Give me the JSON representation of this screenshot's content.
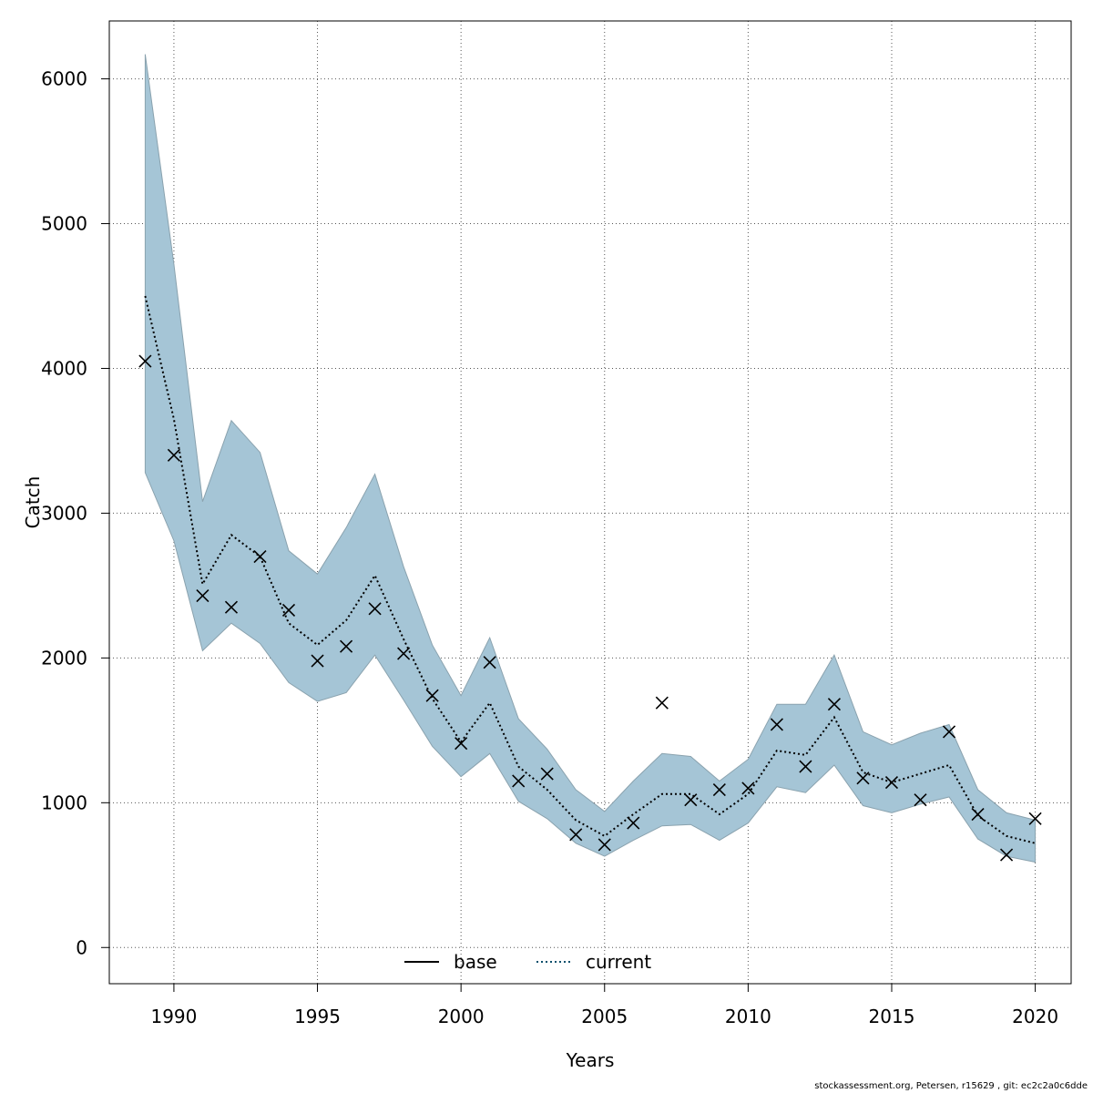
{
  "chart_data": {
    "type": "line",
    "xlabel": "Years",
    "ylabel": "Catch",
    "xlim": [
      1987.75,
      2021.25
    ],
    "ylim": [
      -250,
      6400
    ],
    "xticks": [
      1990,
      1995,
      2000,
      2005,
      2010,
      2015,
      2020
    ],
    "yticks": [
      0,
      1000,
      2000,
      3000,
      4000,
      5000,
      6000
    ],
    "grid": true,
    "legend_position": "bottom-center",
    "legend": [
      {
        "name": "base",
        "style": "solid"
      },
      {
        "name": "current",
        "style": "dotted"
      }
    ],
    "colors": {
      "band": "#a5c5d6",
      "band_edge": "#8aa2ae",
      "current_line": "#0b4f6c",
      "points": "#000000"
    },
    "x": [
      1989,
      1990,
      1991,
      1992,
      1993,
      1994,
      1995,
      1996,
      1997,
      1998,
      1999,
      2000,
      2001,
      2002,
      2003,
      2004,
      2005,
      2006,
      2007,
      2008,
      2009,
      2010,
      2011,
      2012,
      2013,
      2014,
      2015,
      2016,
      2017,
      2018,
      2019,
      2020
    ],
    "series": [
      {
        "name": "current",
        "values": [
          4500,
          3650,
          2510,
          2850,
          2700,
          2240,
          2090,
          2260,
          2570,
          2130,
          1720,
          1420,
          1690,
          1250,
          1090,
          880,
          770,
          920,
          1060,
          1060,
          920,
          1060,
          1360,
          1330,
          1590,
          1210,
          1140,
          1200,
          1260,
          910,
          770,
          720
        ]
      },
      {
        "name": "upper",
        "values": [
          6170,
          4720,
          3080,
          3640,
          3420,
          2740,
          2580,
          2900,
          3270,
          2630,
          2090,
          1740,
          2140,
          1580,
          1370,
          1090,
          940,
          1150,
          1340,
          1320,
          1150,
          1300,
          1680,
          1680,
          2020,
          1490,
          1400,
          1480,
          1540,
          1090,
          930,
          880
        ]
      },
      {
        "name": "lower",
        "values": [
          3280,
          2810,
          2050,
          2240,
          2100,
          1830,
          1700,
          1760,
          2020,
          1710,
          1390,
          1180,
          1340,
          1010,
          890,
          720,
          630,
          740,
          840,
          850,
          740,
          860,
          1110,
          1070,
          1260,
          980,
          930,
          990,
          1040,
          750,
          630,
          590
        ]
      },
      {
        "name": "observed",
        "values": [
          4050,
          3400,
          2430,
          2350,
          2700,
          2330,
          1980,
          2080,
          2340,
          2030,
          1740,
          1410,
          1970,
          1150,
          1200,
          780,
          710,
          860,
          1690,
          1020,
          1090,
          1100,
          1540,
          1250,
          1680,
          1170,
          1140,
          1020,
          1490,
          920,
          640,
          890
        ]
      }
    ]
  },
  "credit": "stockassessment.org, Petersen, r15629 , git: ec2c2a0c6dde"
}
